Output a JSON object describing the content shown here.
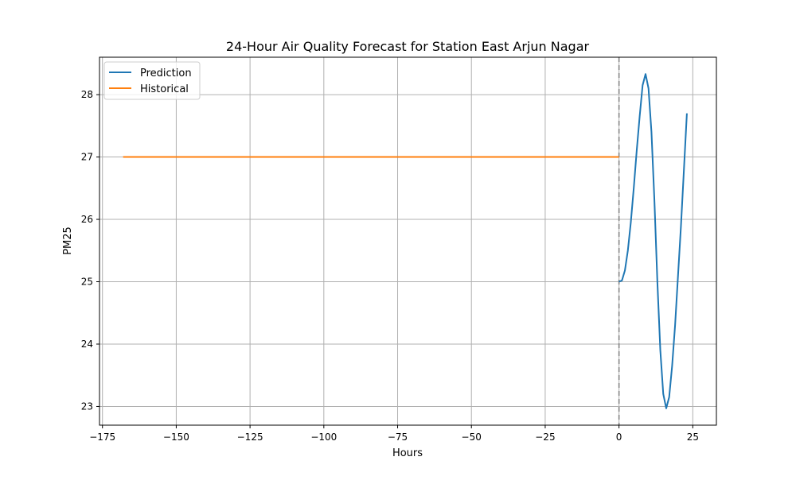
{
  "chart_data": {
    "type": "line",
    "title": "24-Hour Air Quality Forecast for Station East Arjun Nagar",
    "xlabel": "Hours",
    "ylabel": "PM25",
    "xlim": [
      -176,
      33
    ],
    "ylim": [
      22.7,
      28.6
    ],
    "x_ticks": [
      -175,
      -150,
      -125,
      -100,
      -75,
      -50,
      -25,
      0,
      25
    ],
    "x_tick_labels": [
      "−175",
      "−150",
      "−125",
      "−100",
      "−75",
      "−50",
      "−25",
      "0",
      "25"
    ],
    "y_ticks": [
      23,
      24,
      25,
      26,
      27,
      28
    ],
    "y_tick_labels": [
      "23",
      "24",
      "25",
      "26",
      "27",
      "28"
    ],
    "grid": true,
    "legend_position": "upper-left",
    "vertical_marker": {
      "x": 0,
      "style": "dashed",
      "color": "#808080"
    },
    "series": [
      {
        "name": "Prediction",
        "color": "#1f77b4",
        "x": [
          0,
          1,
          2,
          3,
          4,
          5,
          6,
          7,
          8,
          9,
          10,
          11,
          12,
          13,
          14,
          15,
          16,
          17,
          18,
          19,
          20,
          21,
          22,
          23
        ],
        "y": [
          25.0,
          25.02,
          25.18,
          25.5,
          25.95,
          26.5,
          27.1,
          27.65,
          28.15,
          28.33,
          28.1,
          27.4,
          26.3,
          25.0,
          23.9,
          23.2,
          22.97,
          23.15,
          23.65,
          24.3,
          25.1,
          25.9,
          26.8,
          27.7
        ]
      },
      {
        "name": "Historical",
        "color": "#ff7f0e",
        "x": [
          -168,
          0
        ],
        "y": [
          27.0,
          27.0
        ]
      }
    ]
  }
}
